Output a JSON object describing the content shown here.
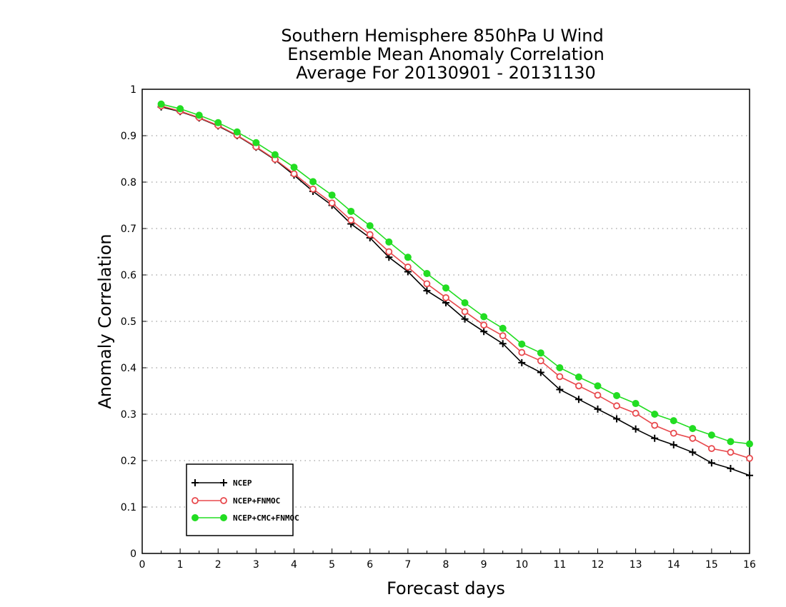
{
  "chart_data": {
    "type": "line",
    "title": [
      "Southern Hemisphere 850hPa U Wind",
      "Ensemble Mean Anomaly Correlation",
      "Average For 20130901 - 20131130"
    ],
    "xlabel": "Forecast days",
    "ylabel": "Anomaly Correlation",
    "xlim": [
      0,
      16
    ],
    "ylim": [
      0,
      1
    ],
    "xticks": [
      "0",
      "1",
      "2",
      "3",
      "4",
      "5",
      "6",
      "7",
      "8",
      "9",
      "10",
      "11",
      "12",
      "13",
      "14",
      "15",
      "16"
    ],
    "yticks": [
      "0",
      "0.1",
      "0.2",
      "0.3",
      "0.4",
      "0.5",
      "0.6",
      "0.7",
      "0.8",
      "0.9",
      "1"
    ],
    "grid": "horizontal dotted",
    "legend_position": "bottom-left",
    "x": [
      0.5,
      1,
      1.5,
      2,
      2.5,
      3,
      3.5,
      4,
      4.5,
      5,
      5.5,
      6,
      6.5,
      7,
      7.5,
      8,
      8.5,
      9,
      9.5,
      10,
      10.5,
      11,
      11.5,
      12,
      12.5,
      13,
      13.5,
      14,
      14.5,
      15,
      15.5,
      16
    ],
    "series": [
      {
        "name": "NCEP",
        "color": "#000000",
        "marker": "plus",
        "values": [
          0.962,
          0.952,
          0.938,
          0.921,
          0.9,
          0.875,
          0.848,
          0.815,
          0.78,
          0.75,
          0.71,
          0.68,
          0.638,
          0.607,
          0.566,
          0.54,
          0.505,
          0.478,
          0.452,
          0.411,
          0.39,
          0.353,
          0.332,
          0.311,
          0.29,
          0.268,
          0.248,
          0.234,
          0.218,
          0.195,
          0.183,
          0.168
        ]
      },
      {
        "name": "NCEP+FNMOC",
        "color": "#e8494d",
        "marker": "open-circle",
        "values": [
          0.964,
          0.953,
          0.939,
          0.922,
          0.901,
          0.876,
          0.849,
          0.818,
          0.785,
          0.755,
          0.718,
          0.687,
          0.65,
          0.617,
          0.581,
          0.551,
          0.521,
          0.492,
          0.469,
          0.433,
          0.415,
          0.381,
          0.361,
          0.341,
          0.318,
          0.302,
          0.276,
          0.259,
          0.248,
          0.226,
          0.218,
          0.205
        ]
      },
      {
        "name": "NCEP+CMC+FNMOC",
        "color": "#22dd22",
        "marker": "filled-circle",
        "values": [
          0.968,
          0.958,
          0.944,
          0.928,
          0.908,
          0.885,
          0.859,
          0.832,
          0.801,
          0.772,
          0.737,
          0.706,
          0.671,
          0.638,
          0.603,
          0.572,
          0.54,
          0.51,
          0.485,
          0.451,
          0.432,
          0.4,
          0.38,
          0.361,
          0.34,
          0.323,
          0.3,
          0.286,
          0.269,
          0.255,
          0.241,
          0.236
        ]
      }
    ]
  }
}
